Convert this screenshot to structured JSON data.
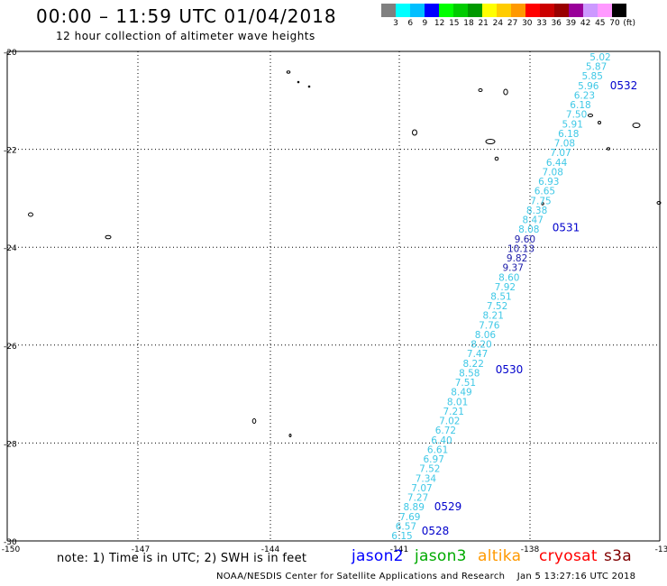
{
  "header": {
    "title": "00:00 – 11:59 UTC 01/04/2018",
    "subtitle": "12 hour collection of altimeter wave heights"
  },
  "color_scale": {
    "ticks": [
      "3",
      "6",
      "9",
      "12",
      "15",
      "18",
      "21",
      "24",
      "27",
      "30",
      "33",
      "36",
      "39",
      "42",
      "45",
      "70",
      "(ft)"
    ],
    "colors": [
      "#808080",
      "#00ffff",
      "#00bfff",
      "#0000ff",
      "#00ff00",
      "#00cc00",
      "#009900",
      "#ffff00",
      "#ffcc00",
      "#ff9900",
      "#ff0000",
      "#cc0000",
      "#990000",
      "#990099",
      "#cc99ff",
      "#ff99ff",
      "#000000"
    ]
  },
  "map": {
    "lat_labels": [
      "-20",
      "-22",
      "-24",
      "-26",
      "-28",
      "-30"
    ],
    "lon_labels": [
      "-150",
      "-147",
      "-144",
      "-141",
      "-138",
      "-13"
    ],
    "pass_labels": [
      {
        "label": "0532",
        "lat": -20.7
      },
      {
        "label": "0531",
        "lat": -23.6
      },
      {
        "label": "0530",
        "lat": -26.5
      },
      {
        "label": "0529",
        "lat": -29.3
      },
      {
        "label": "0528",
        "lat": -29.8
      }
    ],
    "track": {
      "color": "#3fc8e6",
      "dark_color": "#1a1aa8",
      "values": [
        "5.02",
        "5.87",
        "5.85",
        "5.96",
        "6.23",
        "6.18",
        "7.50",
        "5.91",
        "6.18",
        "7.08",
        "7.07",
        "6.44",
        "7.08",
        "6.93",
        "6.65",
        "7.75",
        "8.38",
        "8.47",
        "8.08",
        "9.60",
        "10.13",
        "9.82",
        "9.37",
        "8.60",
        "7.92",
        "8.51",
        "7.52",
        "8.21",
        "7.76",
        "8.06",
        "8.20",
        "7.47",
        "8.22",
        "8.58",
        "7.51",
        "8.49",
        "8.01",
        "7.21",
        "7.02",
        "6.72",
        "6.40",
        "6.61",
        "6.97",
        "7.52",
        "7.34",
        "7.07",
        "7.27",
        "8.89",
        "7.69",
        "6.57",
        "6.15"
      ]
    }
  },
  "legend": {
    "note": "note: 1) Time is in UTC; 2) SWH is in feet",
    "satellites": [
      {
        "name": "jason2",
        "color": "#0000ff"
      },
      {
        "name": "jason3",
        "color": "#00aa00"
      },
      {
        "name": "altika",
        "color": "#ff9900"
      },
      {
        "name": "cryosat",
        "color": "#ff0000"
      },
      {
        "name": "s3a",
        "color": "#800000"
      }
    ]
  },
  "footer": {
    "credit": "NOAA/NESDIS Center for Satellite Applications and Research",
    "timestamp": "Jan  5 13:27:16 UTC 2018"
  }
}
